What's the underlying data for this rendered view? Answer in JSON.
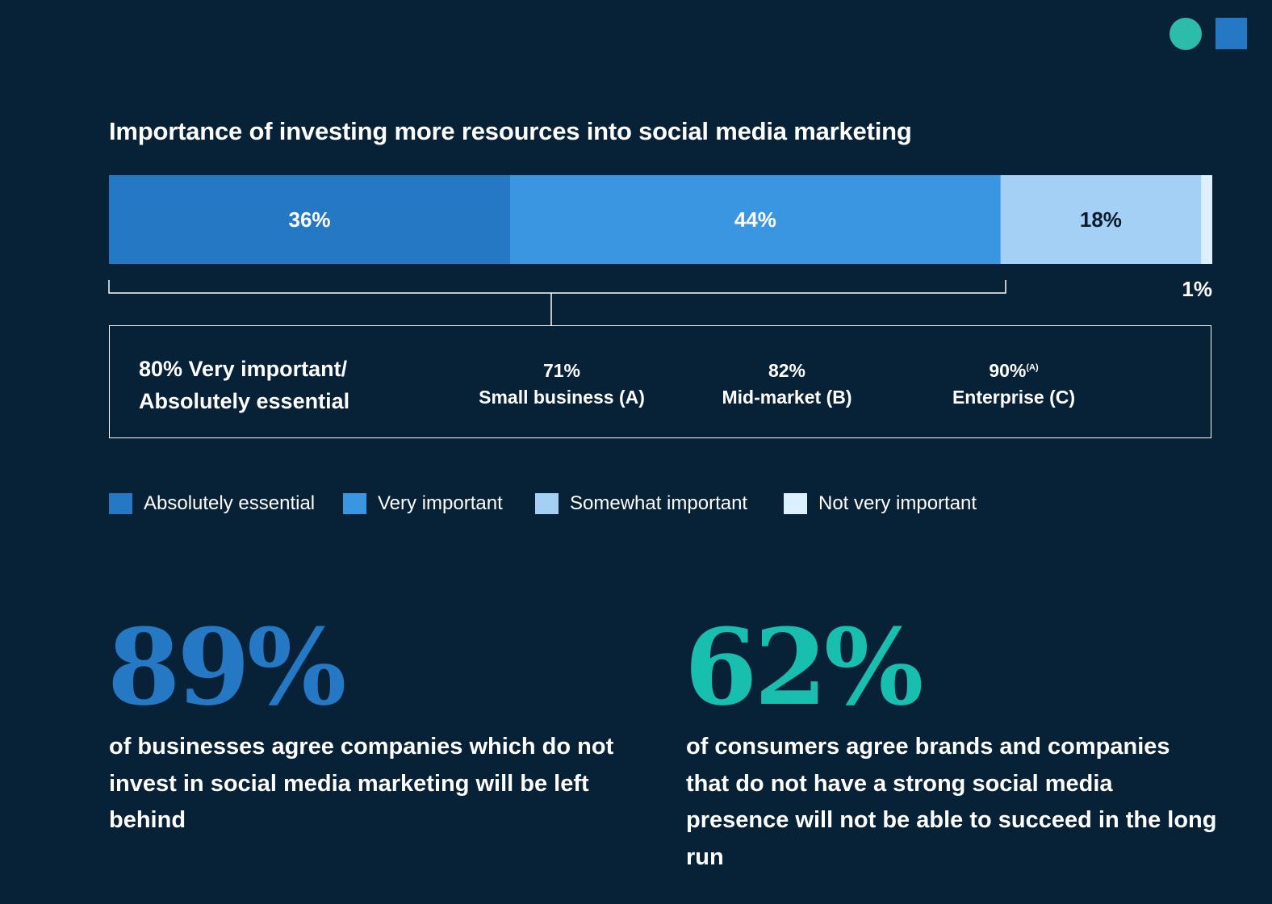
{
  "colors": {
    "background": "#072137",
    "absolutely_essential": "#2478c4",
    "very_important": "#3a96e0",
    "somewhat_important": "#a4d0f6",
    "not_very_important": "#dcf0fe",
    "stat_blue": "#2478c4",
    "stat_teal": "#18bfaf",
    "deco_circle": "#2dbca9",
    "deco_square": "#2478c4"
  },
  "chart_data": {
    "type": "bar",
    "orientation": "horizontal-stacked",
    "title": "Importance of investing more resources into social media marketing",
    "segments": [
      {
        "name": "Absolutely essential",
        "value": 36,
        "label": "36%",
        "color": "#2478c4",
        "label_color": "#ffffff"
      },
      {
        "name": "Very important",
        "value": 44,
        "label": "44%",
        "color": "#3a96e0",
        "label_color": "#ffffff"
      },
      {
        "name": "Somewhat important",
        "value": 18,
        "label": "18%",
        "color": "#a4d0f6",
        "label_color": "#0c1b2b"
      },
      {
        "name": "Not very important",
        "value": 1,
        "label": "1%",
        "color": "#dcf0fe",
        "label_color": "#ffffff"
      }
    ],
    "legend": [
      {
        "label": "Absolutely essential",
        "color": "#2478c4"
      },
      {
        "label": "Very important",
        "color": "#3a96e0"
      },
      {
        "label": "Somewhat important",
        "color": "#a4d0f6"
      },
      {
        "label": "Not very important",
        "color": "#dcf0fe"
      }
    ],
    "legend_placement": "bottom"
  },
  "summary": {
    "headline_line1": "80% Very important/",
    "headline_line2": "Absolutely essential",
    "segments": [
      {
        "pct": "71%",
        "sup": "",
        "label": "Small business (A)"
      },
      {
        "pct": "82%",
        "sup": "",
        "label": "Mid-market (B)"
      },
      {
        "pct": "90%",
        "sup": "(A)",
        "label": "Enterprise (C)"
      }
    ]
  },
  "stats": [
    {
      "value": "89%",
      "description": "of businesses agree companies which do not invest in social media marketing will be left behind",
      "color": "#2478c4"
    },
    {
      "value": "62%",
      "description": "of consumers agree brands and companies that do not have a strong social media presence will not be able to succeed in the long run",
      "color": "#18bfaf"
    }
  ]
}
